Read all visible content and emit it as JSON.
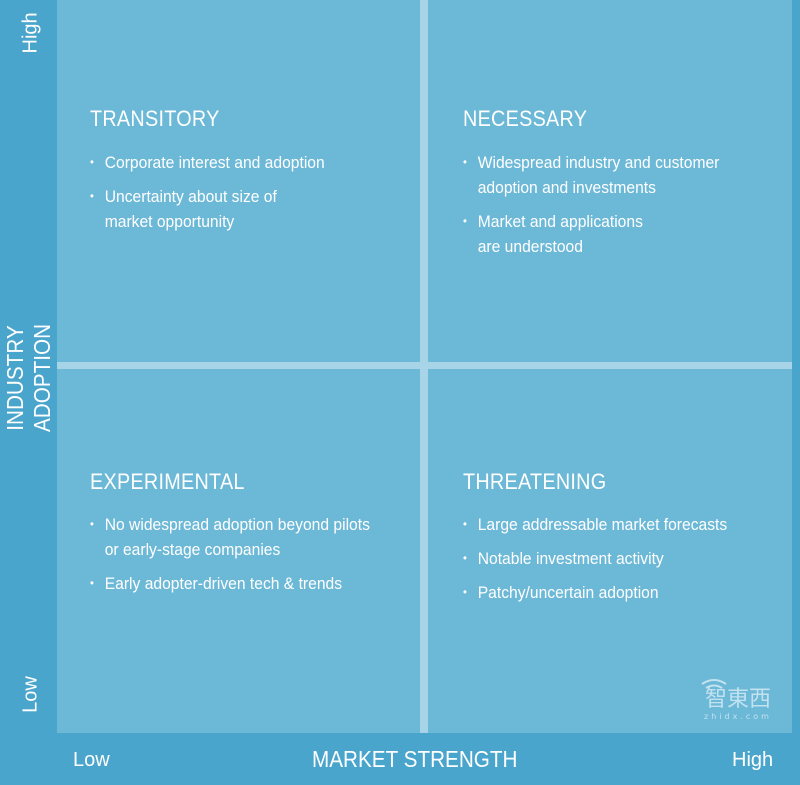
{
  "axes": {
    "y_label": "INDUSTRY ADOPTION",
    "y_high": "High",
    "y_low": "Low",
    "x_label": "MARKET STRENGTH",
    "x_low": "Low",
    "x_high": "High"
  },
  "quadrants": [
    {
      "title": "TRANSITORY",
      "bullets": [
        "Corporate interest and adoption",
        "Uncertainty about size of market opportunity"
      ]
    },
    {
      "title": "NECESSARY",
      "bullets": [
        "Widespread industry and customer adoption and investments",
        "Market and applications are understood"
      ]
    },
    {
      "title": "EXPERIMENTAL",
      "bullets": [
        "No widespread adoption beyond pilots or early-stage companies",
        "Early adopter-driven tech & trends"
      ]
    },
    {
      "title": "THREATENING",
      "bullets": [
        "Large addressable market forecasts",
        "Notable investment activity",
        "Patchy/uncertain adoption"
      ]
    }
  ],
  "watermark": "智東西 zhidx.com",
  "colors": {
    "background": "#4aa5cc",
    "quadrant": "#6cb8d7",
    "divider": "#a8d4e7",
    "text": "#ffffff"
  }
}
